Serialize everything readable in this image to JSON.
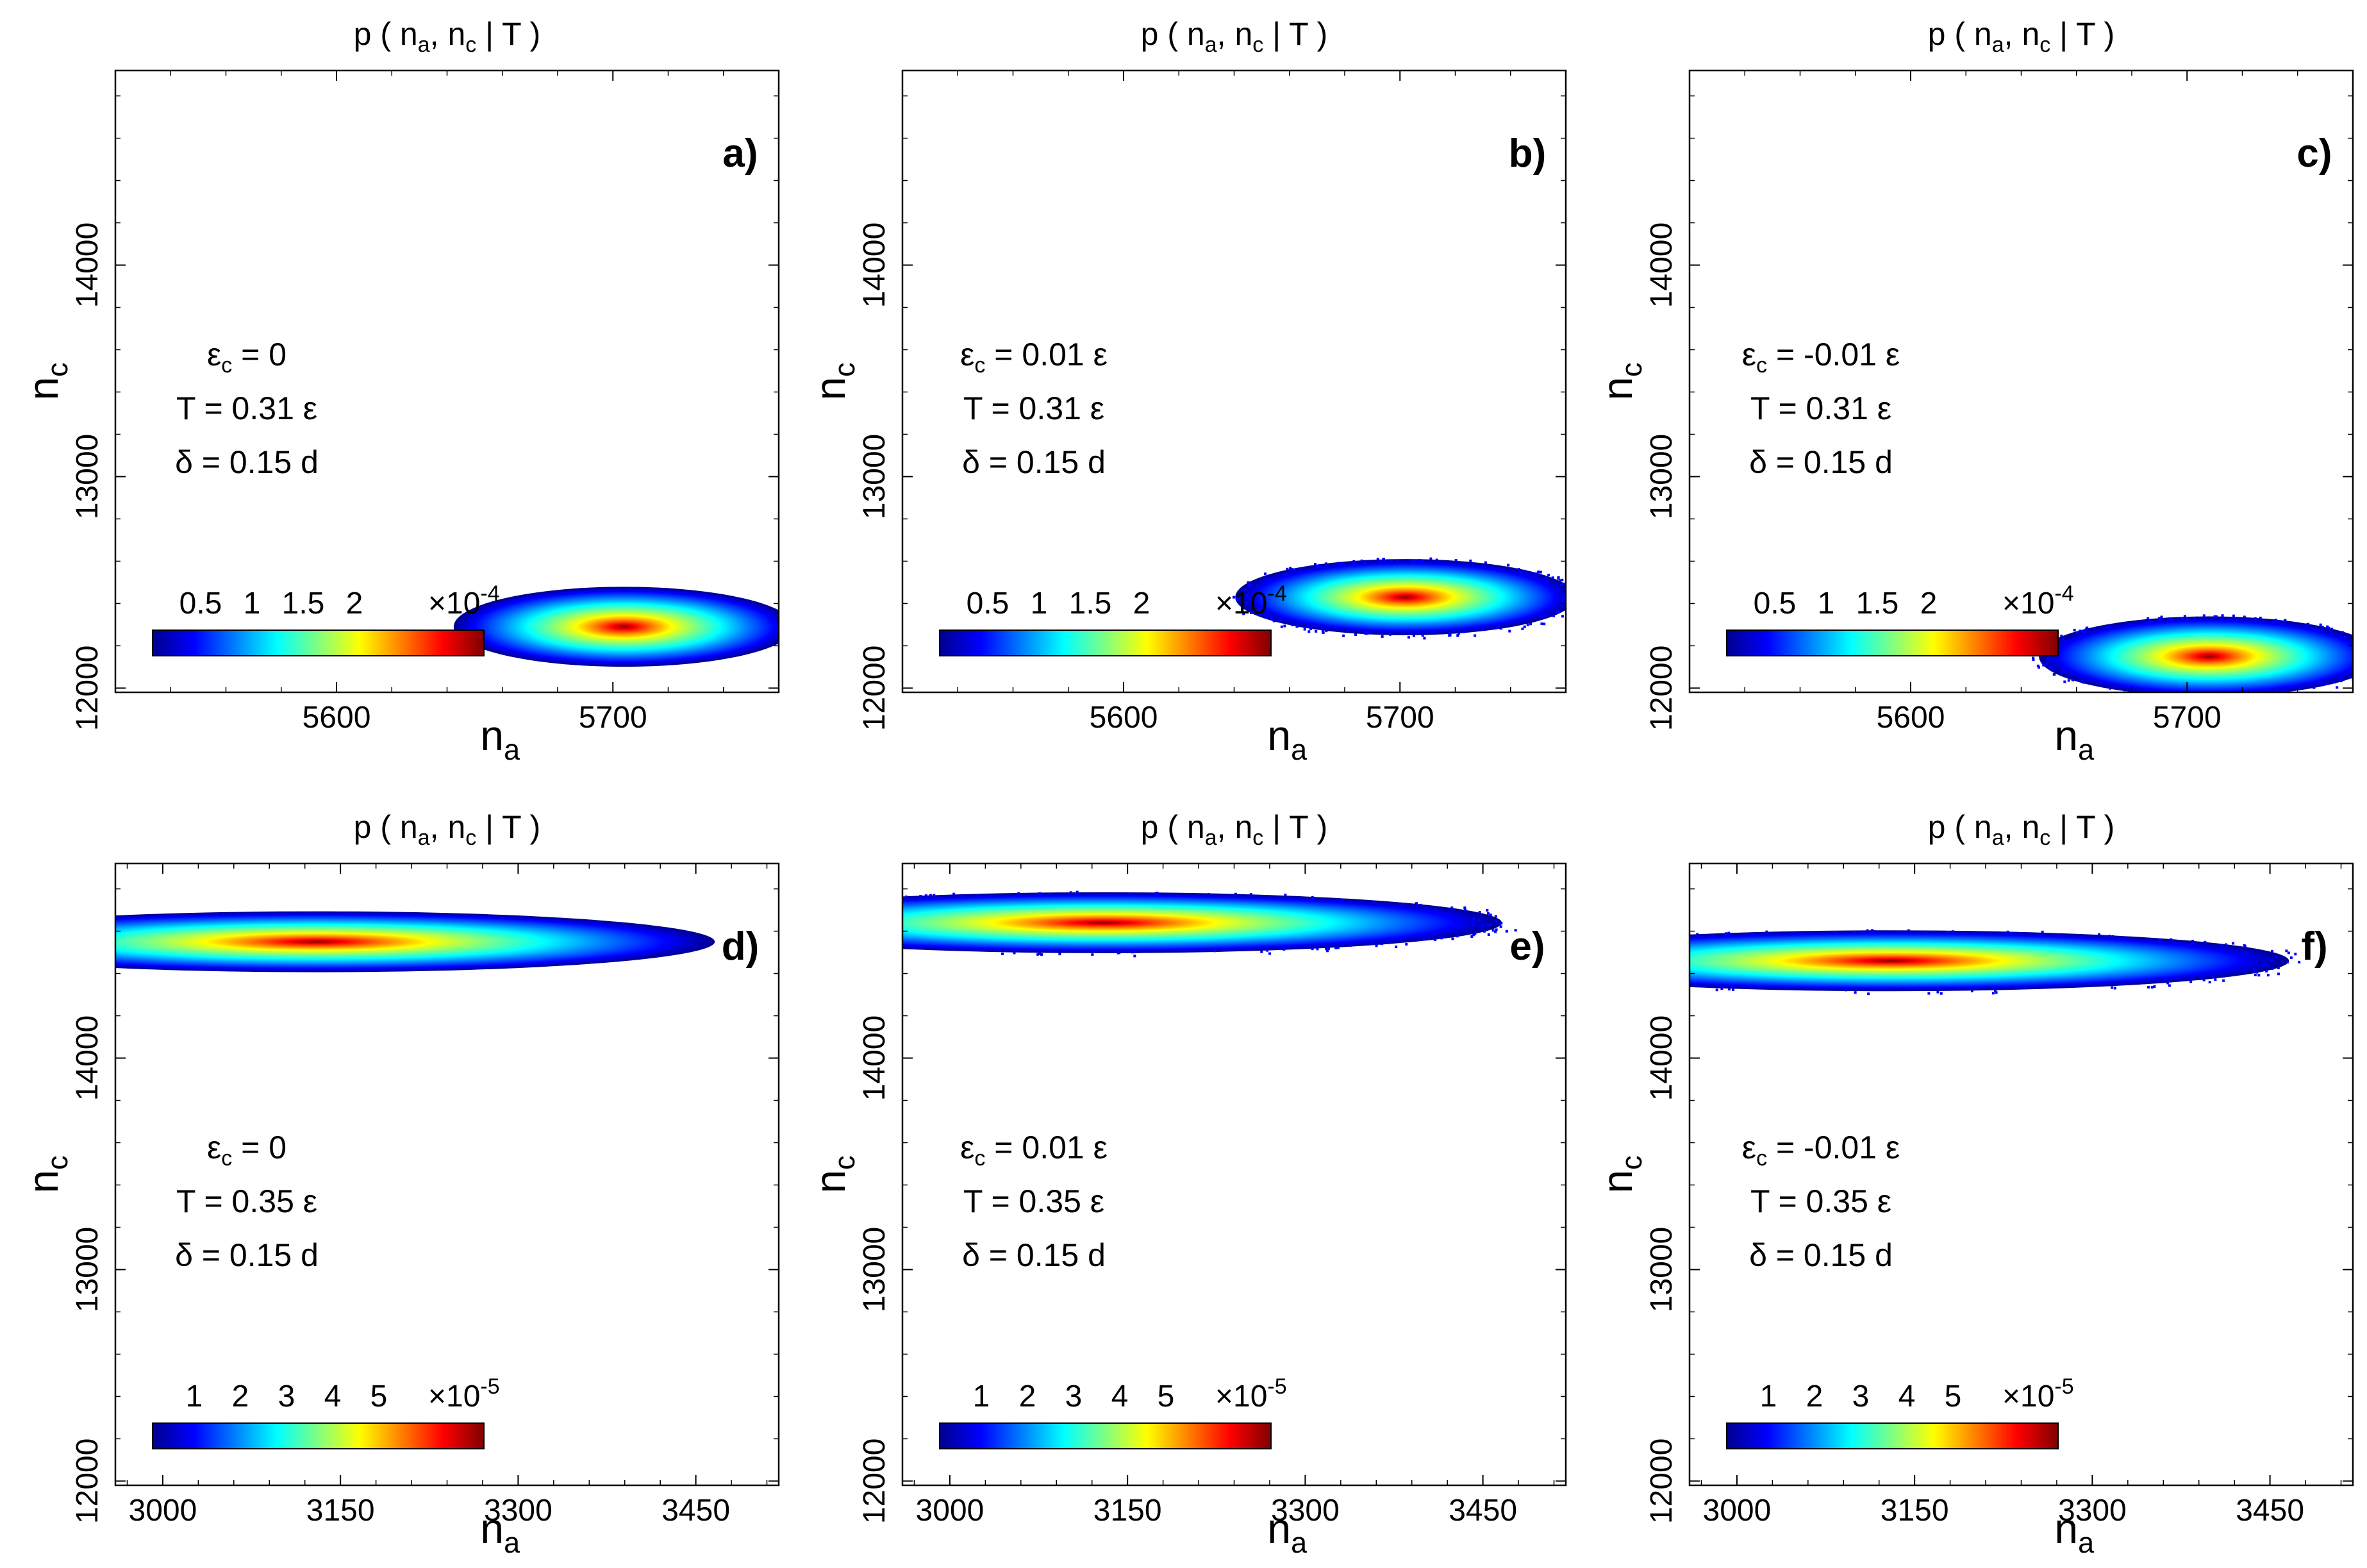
{
  "colormap": [
    "#00008f",
    "#0000ff",
    "#0080ff",
    "#00ffff",
    "#80ff80",
    "#ffff00",
    "#ff8000",
    "#ff0000",
    "#800000"
  ],
  "chart_data": [
    {
      "type": "heatmap",
      "panel": "a)",
      "title": "p ( n_a, n_c | T )",
      "xlabel": "n_a",
      "ylabel": "n_c",
      "xlim": [
        5520,
        5760
      ],
      "ylim": [
        11980,
        14920
      ],
      "xticks": [
        5600,
        5700
      ],
      "yticks": [
        12000,
        13000,
        14000
      ],
      "params": [
        "ε_c = 0",
        "T = 0.31 ε",
        "δ = 0.15 d"
      ],
      "colorbar": {
        "ticks": [
          "0.5",
          "1",
          "1.5",
          "2"
        ],
        "exponent": "×10^-4"
      },
      "peak": {
        "x": 5704,
        "y": 12290,
        "sx": 22,
        "sy": 210,
        "noisy": false
      }
    },
    {
      "type": "heatmap",
      "panel": "b)",
      "title": "p ( n_a, n_c | T )",
      "xlabel": "n_a",
      "ylabel": "n_c",
      "xlim": [
        5520,
        5760
      ],
      "ylim": [
        11980,
        14920
      ],
      "xticks": [
        5600,
        5700
      ],
      "yticks": [
        12000,
        13000,
        14000
      ],
      "params": [
        "ε_c = 0.01 ε",
        "T = 0.31 ε",
        "δ = 0.15 d"
      ],
      "colorbar": {
        "ticks": [
          "0.5",
          "1",
          "1.5",
          "2"
        ],
        "exponent": "×10^-4"
      },
      "peak": {
        "x": 5702,
        "y": 12430,
        "sx": 22,
        "sy": 200,
        "noisy": true
      }
    },
    {
      "type": "heatmap",
      "panel": "c)",
      "title": "p ( n_a, n_c | T )",
      "xlabel": "n_a",
      "ylabel": "n_c",
      "xlim": [
        5520,
        5760
      ],
      "ylim": [
        11980,
        14920
      ],
      "xticks": [
        5600,
        5700
      ],
      "yticks": [
        12000,
        13000,
        14000
      ],
      "params": [
        "ε_c = -0.01 ε",
        "T = 0.31 ε",
        "δ = 0.15 d"
      ],
      "colorbar": {
        "ticks": [
          "0.5",
          "1",
          "1.5",
          "2"
        ],
        "exponent": "×10^-4"
      },
      "peak": {
        "x": 5708,
        "y": 12150,
        "sx": 22,
        "sy": 210,
        "noisy": true
      }
    },
    {
      "type": "heatmap",
      "panel": "d)",
      "title": "p ( n_a, n_c | T )",
      "xlabel": "n_a",
      "ylabel": "n_c",
      "xlim": [
        2960,
        3520
      ],
      "ylim": [
        11980,
        14920
      ],
      "xticks": [
        3000,
        3150,
        3300,
        3450
      ],
      "yticks": [
        12000,
        13000,
        14000
      ],
      "params": [
        "ε_c = 0",
        "T = 0.35 ε",
        "δ = 0.15 d"
      ],
      "colorbar": {
        "ticks": [
          "1",
          "2",
          "3",
          "4",
          "5"
        ],
        "exponent": "×10^-5"
      },
      "peak": {
        "x": 3130,
        "y": 14550,
        "sx": 120,
        "sy": 160,
        "noisy": false
      }
    },
    {
      "type": "heatmap",
      "panel": "e)",
      "title": "p ( n_a, n_c | T )",
      "xlabel": "n_a",
      "ylabel": "n_c",
      "xlim": [
        2960,
        3520
      ],
      "ylim": [
        11980,
        14920
      ],
      "xticks": [
        3000,
        3150,
        3300,
        3450
      ],
      "yticks": [
        12000,
        13000,
        14000
      ],
      "params": [
        "ε_c = 0.01 ε",
        "T = 0.35 ε",
        "δ = 0.15 d"
      ],
      "colorbar": {
        "ticks": [
          "1",
          "2",
          "3",
          "4",
          "5"
        ],
        "exponent": "×10^-5"
      },
      "peak": {
        "x": 3130,
        "y": 14640,
        "sx": 120,
        "sy": 160,
        "noisy": true
      }
    },
    {
      "type": "heatmap",
      "panel": "f)",
      "title": "p ( n_a, n_c | T )",
      "xlabel": "n_a",
      "ylabel": "n_c",
      "xlim": [
        2960,
        3520
      ],
      "ylim": [
        11980,
        14920
      ],
      "xticks": [
        3000,
        3150,
        3300,
        3450
      ],
      "yticks": [
        12000,
        13000,
        14000
      ],
      "params": [
        "ε_c = -0.01 ε",
        "T = 0.35 ε",
        "δ = 0.15 d"
      ],
      "colorbar": {
        "ticks": [
          "1",
          "2",
          "3",
          "4",
          "5"
        ],
        "exponent": "×10^-5"
      },
      "peak": {
        "x": 3130,
        "y": 14460,
        "sx": 120,
        "sy": 160,
        "noisy": true
      }
    }
  ]
}
